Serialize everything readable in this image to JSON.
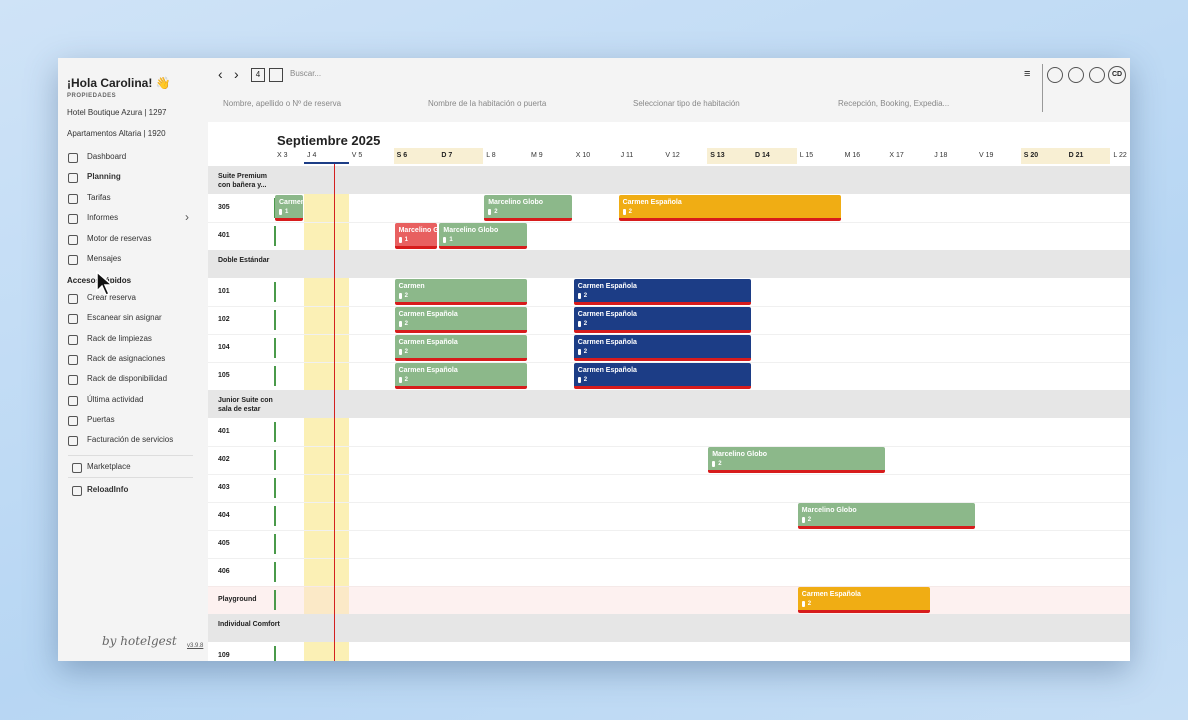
{
  "sidebar": {
    "greeting": "¡Hola Carolina! 👋",
    "properties_label": "PROPIEDADES",
    "properties": [
      "Hotel Boutique Azura | 1297",
      "Apartamentos Altaria | 1920"
    ],
    "nav": [
      "Dashboard",
      "Planning",
      "Tarifas",
      "Informes",
      "Motor de reservas",
      "Mensajes"
    ],
    "quick_title": "Accesos rápidos",
    "quick": [
      "Crear reserva",
      "Escanear sin asignar",
      "Rack de limpiezas",
      "Rack de asignaciones",
      "Rack de disponibilidad",
      "Última actividad",
      "Puertas",
      "Facturación de servicios"
    ],
    "extras": [
      "Marketplace",
      "ReloadInfo"
    ],
    "brand": "by hotelgest",
    "version": "v3.9.8"
  },
  "toolbar": {
    "date_icon": "4",
    "search": "Buscar...",
    "filters": [
      "Nombre, apellido o Nº de reserva",
      "Nombre de la habitación o puerta",
      "Seleccionar tipo de habitación",
      "Recepción, Booking, Expedia..."
    ],
    "avatar": "CD"
  },
  "planning": {
    "month": "Septiembre 2025",
    "today": "J 4",
    "days": [
      "X 3",
      "J 4",
      "V 5",
      "S 6",
      "D 7",
      "L 8",
      "M 9",
      "X 10",
      "J 11",
      "V 12",
      "S 13",
      "D 14",
      "L 15",
      "M 16",
      "X 17",
      "J 18",
      "V 19",
      "S 20",
      "D 21",
      "L 22"
    ],
    "groups": [
      {
        "name": "Suite Premium con bañera y...",
        "rooms": [
          {
            "name": "305",
            "bookings": [
              {
                "name": "Carmen",
                "guests": 1,
                "checkin": "X 3",
                "checkout": "J 4",
                "color": "#8cb88a"
              },
              {
                "name": "Marcelino Globo",
                "guests": 2,
                "checkin": "L 8",
                "checkout": "X 10",
                "color": "#8cb88a"
              },
              {
                "name": "Carmen Española",
                "guests": 2,
                "checkin": "J 11",
                "checkout": "M 16",
                "color": "#f0ad14"
              }
            ]
          },
          {
            "name": "401",
            "bookings": [
              {
                "name": "Marcelino Globo",
                "guests": 1,
                "checkin": "S 6",
                "checkout": "D 7",
                "color": "#e86060"
              },
              {
                "name": "Marcelino Globo",
                "guests": 1,
                "checkin": "D 7",
                "checkout": "M 9",
                "color": "#8cb88a"
              }
            ]
          }
        ]
      },
      {
        "name": "Doble Estándar",
        "rooms": [
          {
            "name": "101",
            "bookings": [
              {
                "name": "Carmen",
                "guests": 2,
                "checkin": "S 6",
                "checkout": "M 9",
                "color": "#8cb88a"
              },
              {
                "name": "Carmen Española",
                "guests": 2,
                "checkin": "X 10",
                "checkout": "D 14",
                "color": "#1c3d86"
              }
            ]
          },
          {
            "name": "102",
            "bookings": [
              {
                "name": "Carmen Española",
                "guests": 2,
                "checkin": "S 6",
                "checkout": "M 9",
                "color": "#8cb88a"
              },
              {
                "name": "Carmen Española",
                "guests": 2,
                "checkin": "X 10",
                "checkout": "D 14",
                "color": "#1c3d86"
              }
            ]
          },
          {
            "name": "104",
            "bookings": [
              {
                "name": "Carmen Española",
                "guests": 2,
                "checkin": "S 6",
                "checkout": "M 9",
                "color": "#8cb88a"
              },
              {
                "name": "Carmen Española",
                "guests": 2,
                "checkin": "X 10",
                "checkout": "D 14",
                "color": "#1c3d86"
              }
            ]
          },
          {
            "name": "105",
            "bookings": [
              {
                "name": "Carmen Española",
                "guests": 2,
                "checkin": "S 6",
                "checkout": "M 9",
                "color": "#8cb88a"
              },
              {
                "name": "Carmen Española",
                "guests": 2,
                "checkin": "X 10",
                "checkout": "D 14",
                "color": "#1c3d86"
              }
            ]
          }
        ]
      },
      {
        "name": "Junior Suite con sala de estar",
        "rooms": [
          {
            "name": "401",
            "bookings": []
          },
          {
            "name": "402",
            "bookings": [
              {
                "name": "Marcelino Globo",
                "guests": 2,
                "checkin": "S 13",
                "checkout": "X 17",
                "color": "#8cb88a"
              }
            ]
          },
          {
            "name": "403",
            "bookings": []
          },
          {
            "name": "404",
            "bookings": [
              {
                "name": "Marcelino Globo",
                "guests": 2,
                "checkin": "L 15",
                "checkout": "V 19",
                "color": "#8cb88a"
              }
            ]
          },
          {
            "name": "405",
            "bookings": []
          },
          {
            "name": "406",
            "bookings": []
          },
          {
            "name": "Playground",
            "tinted": true,
            "bookings": [
              {
                "name": "Carmen Española",
                "guests": 2,
                "checkin": "L 15",
                "checkout": "J 18",
                "color": "#f0ad14"
              }
            ]
          }
        ]
      },
      {
        "name": "Individual Comfort",
        "rooms": [
          {
            "name": "109",
            "bookings": []
          }
        ]
      }
    ]
  }
}
